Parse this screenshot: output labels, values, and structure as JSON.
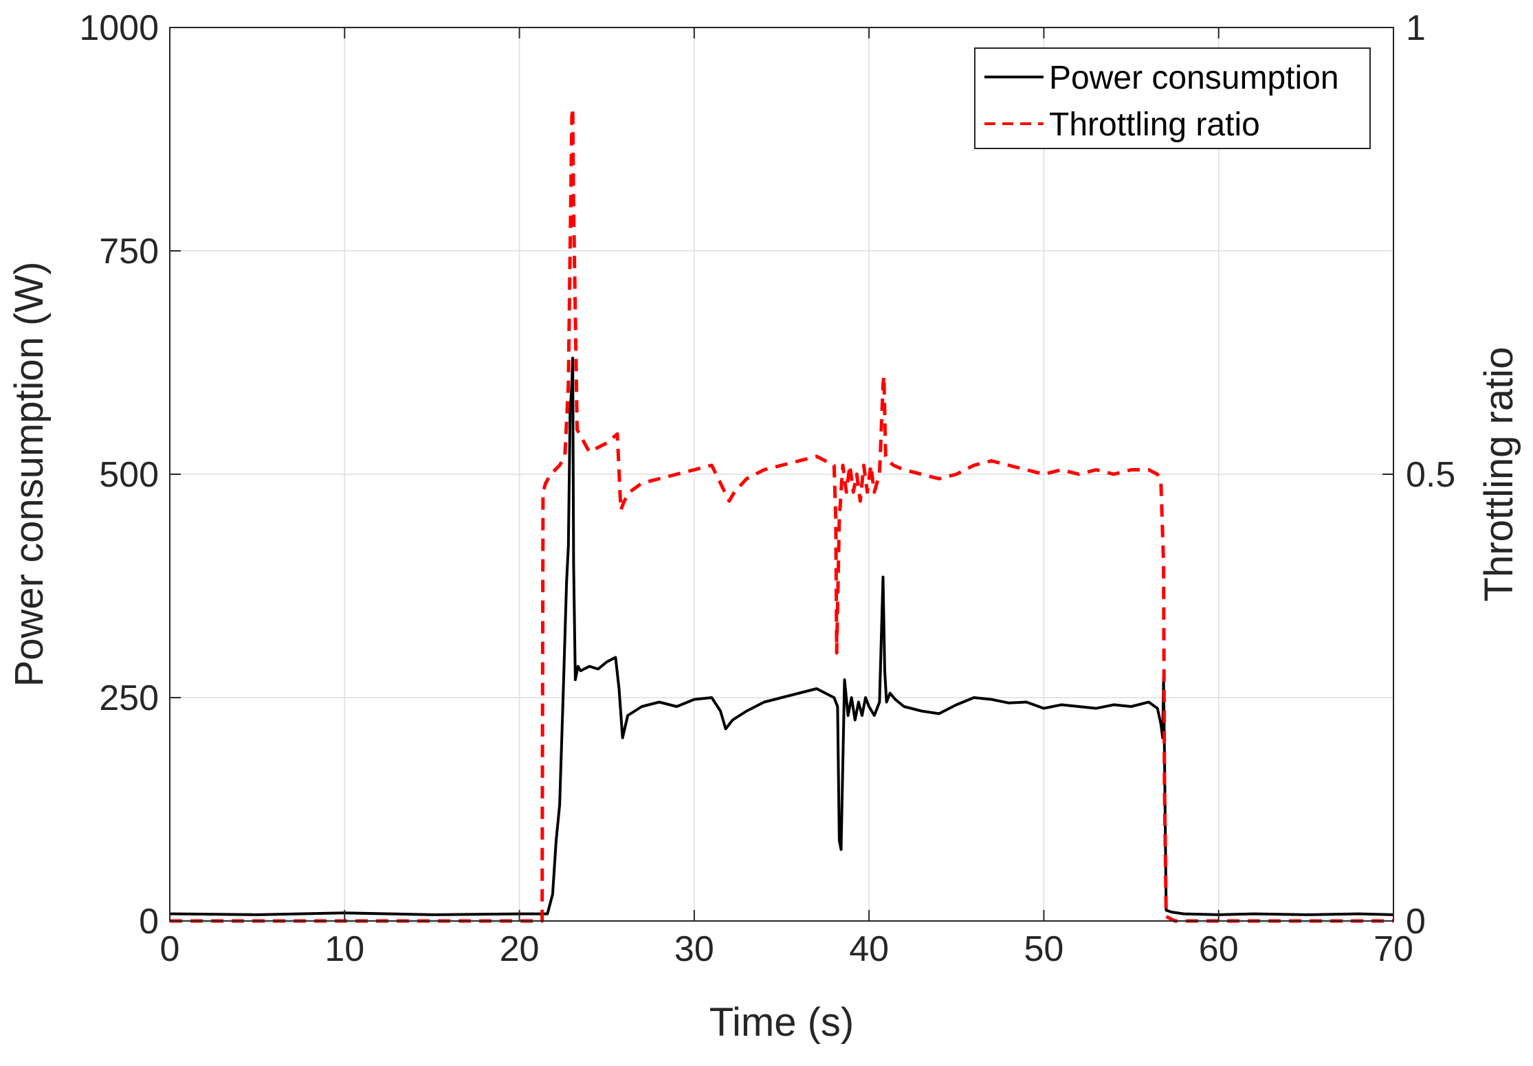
{
  "chart_data": {
    "type": "line",
    "title": "",
    "xlabel": "Time (s)",
    "ylabel_left": "Power consumption (W)",
    "ylabel_right": "Throttling ratio",
    "xlim": [
      0,
      70
    ],
    "ylim_left": [
      0,
      1000
    ],
    "ylim_right": [
      0,
      1
    ],
    "grid": true,
    "legend_position": "top-right",
    "x_ticks": [
      "0",
      "10",
      "20",
      "30",
      "40",
      "50",
      "60",
      "70"
    ],
    "y_ticks_left": [
      "0",
      "250",
      "500",
      "750",
      "1000"
    ],
    "y_ticks_right": [
      "0",
      "0.5",
      "1"
    ],
    "series": [
      {
        "name": "Power consumption",
        "axis": "left",
        "color": "#000000",
        "style": "solid",
        "x": [
          0,
          5,
          10,
          15,
          20,
          21.3,
          21.6,
          21.9,
          22.1,
          22.3,
          22.5,
          22.7,
          22.8,
          22.9,
          23.0,
          23.05,
          23.1,
          23.2,
          23.35,
          23.5,
          24,
          24.5,
          25,
          25.5,
          25.7,
          25.9,
          26.2,
          27,
          28,
          29,
          30,
          31,
          31.5,
          31.8,
          32.2,
          33,
          34,
          35,
          36,
          37,
          37.5,
          38,
          38.2,
          38.3,
          38.4,
          38.6,
          38.8,
          39.0,
          39.2,
          39.4,
          39.6,
          39.8,
          40.0,
          40.3,
          40.6,
          40.8,
          40.9,
          41.0,
          41.2,
          41.5,
          42,
          43,
          44,
          45,
          46,
          47,
          48,
          49,
          50,
          51,
          52,
          53,
          54,
          55,
          56,
          56.5,
          56.7,
          56.8,
          56.85,
          56.9,
          57.0,
          57.3,
          58,
          60,
          62,
          65,
          68,
          70
        ],
        "values": [
          8,
          7,
          9,
          7,
          8,
          8,
          8,
          30,
          90,
          130,
          250,
          380,
          420,
          570,
          600,
          630,
          400,
          270,
          285,
          280,
          285,
          282,
          290,
          295,
          260,
          205,
          230,
          240,
          245,
          240,
          248,
          250,
          235,
          215,
          225,
          235,
          245,
          250,
          255,
          260,
          255,
          250,
          240,
          90,
          80,
          270,
          230,
          250,
          225,
          245,
          230,
          250,
          240,
          230,
          245,
          385,
          280,
          245,
          255,
          248,
          240,
          235,
          232,
          242,
          250,
          248,
          244,
          245,
          238,
          242,
          240,
          238,
          242,
          240,
          245,
          238,
          220,
          205,
          272,
          190,
          12,
          10,
          8,
          7,
          8,
          7,
          8,
          7
        ]
      },
      {
        "name": "Throttling ratio",
        "axis": "right",
        "color": "#ff0000",
        "style": "dashed",
        "x": [
          0,
          10,
          20,
          21.3,
          21.35,
          21.5,
          21.8,
          22.3,
          22.6,
          22.8,
          22.9,
          23.0,
          23.05,
          23.1,
          23.3,
          24,
          25,
          25.6,
          25.8,
          26.0,
          26.3,
          27,
          28,
          29,
          30,
          31,
          31.5,
          32,
          32.3,
          33,
          34,
          35,
          36,
          37,
          38,
          38.1,
          38.15,
          38.3,
          38.5,
          38.7,
          38.9,
          39.1,
          39.3,
          39.5,
          39.7,
          39.9,
          40.1,
          40.3,
          40.6,
          40.8,
          40.85,
          40.95,
          41.1,
          41.4,
          42,
          43,
          44,
          45,
          46,
          47,
          48,
          49,
          50,
          51,
          52,
          53,
          54,
          55,
          56,
          56.5,
          56.7,
          56.85,
          56.9,
          57.0,
          57.5,
          60,
          65,
          70
        ],
        "values": [
          0,
          0,
          0,
          0,
          0.48,
          0.49,
          0.5,
          0.51,
          0.52,
          0.6,
          0.75,
          0.9,
          0.91,
          0.8,
          0.55,
          0.525,
          0.535,
          0.545,
          0.46,
          0.47,
          0.48,
          0.49,
          0.495,
          0.5,
          0.505,
          0.51,
          0.49,
          0.47,
          0.48,
          0.495,
          0.505,
          0.51,
          0.515,
          0.52,
          0.51,
          0.45,
          0.3,
          0.45,
          0.51,
          0.48,
          0.51,
          0.48,
          0.5,
          0.47,
          0.51,
          0.48,
          0.51,
          0.48,
          0.5,
          0.6,
          0.61,
          0.52,
          0.515,
          0.51,
          0.505,
          0.5,
          0.495,
          0.5,
          0.51,
          0.515,
          0.51,
          0.505,
          0.5,
          0.505,
          0.5,
          0.505,
          0.5,
          0.505,
          0.505,
          0.5,
          0.49,
          0.4,
          0.15,
          0.005,
          0,
          0,
          0,
          0
        ]
      }
    ]
  }
}
